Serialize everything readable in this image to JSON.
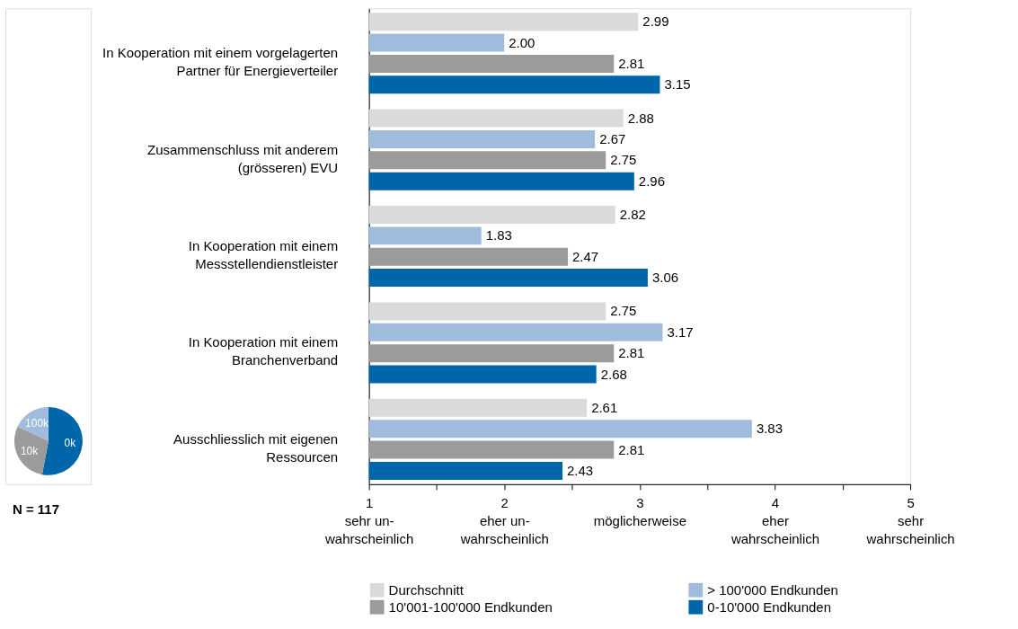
{
  "chart_data": [
    {
      "type": "pie",
      "categories": [
        "0k",
        "10k",
        "100k"
      ],
      "values": [
        53,
        29,
        18
      ],
      "colors": [
        "#0066aa",
        "#9b9b9b",
        "#a0bcdc"
      ],
      "annotations": [
        "N = 117"
      ]
    },
    {
      "type": "bar",
      "orientation": "horizontal",
      "categories": [
        "In Kooperation mit einem vorgelagerten\nPartner für Energieverteiler",
        "Zusammenschluss mit anderem\n(grösseren) EVU",
        "In Kooperation mit einem\nMessstellendienstleister",
        "In Kooperation mit einem\nBranchenverband",
        "Ausschliesslich mit eigenen\nRessourcen"
      ],
      "series": [
        {
          "name": "Durchschnitt",
          "color": "#d9dadb",
          "values": [
            2.99,
            2.88,
            2.82,
            2.75,
            2.61
          ]
        },
        {
          "name": "> 100'000 Endkunden",
          "color": "#a0bcdc",
          "values": [
            2.0,
            2.67,
            1.83,
            3.17,
            3.83
          ],
          "value_labels": [
            "2.00",
            "2.67",
            "1.83",
            "3.17",
            "3.83"
          ]
        },
        {
          "name": "10'001-100'000 Endkunden",
          "color": "#9b9b9b",
          "values": [
            2.81,
            2.75,
            2.47,
            2.81,
            2.81
          ]
        },
        {
          "name": "0-10'000 Endkunden",
          "color": "#0066aa",
          "values": [
            3.15,
            2.96,
            3.06,
            2.68,
            2.43
          ]
        }
      ],
      "xlim": [
        1,
        5
      ],
      "xticks": [
        {
          "value": 1,
          "label": "1\nsehr un-\nwahrscheinlich"
        },
        {
          "value": 1.5,
          "label": null
        },
        {
          "value": 2,
          "label": "2\neher un-\nwahrscheinlich"
        },
        {
          "value": 2.5,
          "label": null
        },
        {
          "value": 3,
          "label": "3\nmöglicherweise"
        },
        {
          "value": 3.5,
          "label": null
        },
        {
          "value": 4,
          "label": "4\neher\nwahrscheinlich"
        },
        {
          "value": 4.5,
          "label": null
        },
        {
          "value": 5,
          "label": "5\nsehr\nwahrscheinlich"
        }
      ],
      "data_labels": true,
      "grid": false,
      "legend": "bottom"
    }
  ]
}
